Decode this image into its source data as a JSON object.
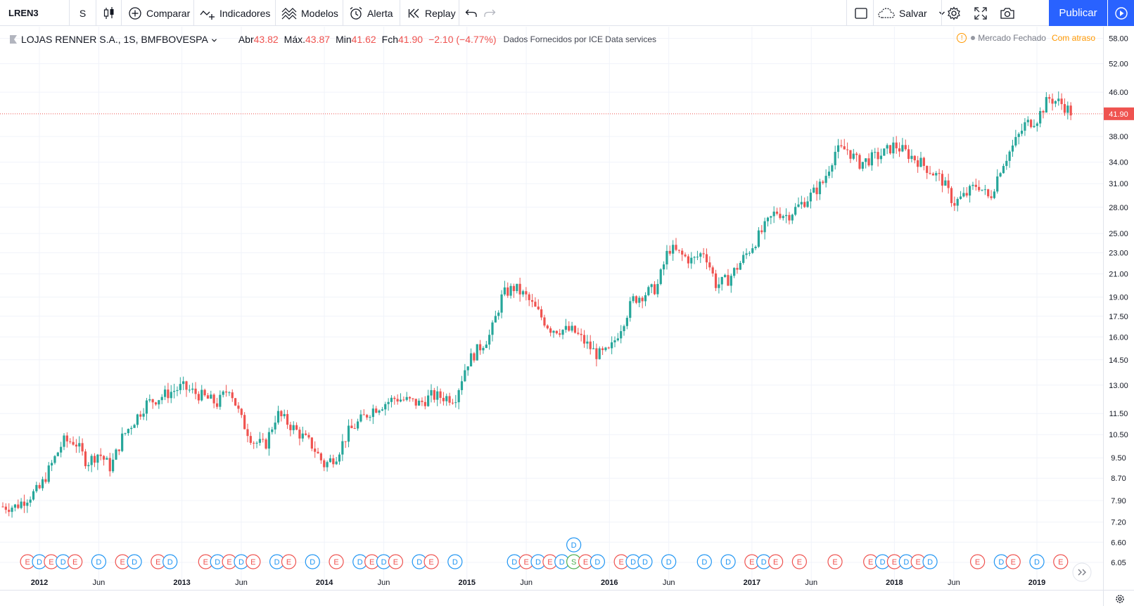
{
  "toolbar": {
    "symbol": "LREN3",
    "interval": "S",
    "compare": "Comparar",
    "indicators": "Indicadores",
    "templates": "Modelos",
    "alert": "Alerta",
    "replay": "Replay",
    "save": "Salvar",
    "publish": "Publicar"
  },
  "legend": {
    "title": "LOJAS RENNER S.A., 1S, BMFBOVESPA",
    "open_label": "Abr",
    "open": "43.82",
    "high_label": "Máx.",
    "high": "43.87",
    "low_label": "Min",
    "low": "41.62",
    "close_label": "Fch",
    "close": "41.90",
    "change": "−2.10 (−4.77%)",
    "source": "Dados Fornecidos por ICE Data services",
    "market_status": "Mercado Fechado",
    "delay": "Com atraso"
  },
  "colors": {
    "up": "#26a69a",
    "down": "#ef5350",
    "accent": "#2962ff",
    "dividend": "#2196f3",
    "earnings": "#ef5350",
    "split": "#4caf50"
  },
  "chart_data": {
    "type": "candlestick",
    "scale": "log",
    "last_price": 41.9,
    "last_price_label": "41.90",
    "price_ticks": [
      "58.00",
      "52.00",
      "46.00",
      "41.90",
      "38.00",
      "34.00",
      "31.00",
      "28.00",
      "25.00",
      "23.00",
      "21.00",
      "19.00",
      "17.50",
      "16.00",
      "14.50",
      "13.00",
      "11.50",
      "10.50",
      "9.50",
      "8.70",
      "7.90",
      "7.20",
      "6.60",
      "6.05"
    ],
    "price_tick_values": [
      58,
      52,
      46,
      38,
      34,
      31,
      28,
      25,
      23,
      21,
      19,
      17.5,
      16,
      14.5,
      13,
      11.5,
      10.5,
      9.5,
      8.7,
      7.9,
      7.2,
      6.6,
      6.05
    ],
    "time_labels": [
      "2012",
      "Jun",
      "2013",
      "Jun",
      "2014",
      "Jun",
      "2015",
      "Jun",
      "2016",
      "Jun",
      "2017",
      "Jun",
      "2018",
      "Jun",
      "2019"
    ],
    "time_label_bold": [
      true,
      false,
      true,
      false,
      true,
      false,
      true,
      false,
      true,
      false,
      true,
      false,
      true,
      false,
      true
    ],
    "time_label_dates": [
      "2012-01",
      "2012-06",
      "2013-01",
      "2013-06",
      "2014-01",
      "2014-06",
      "2015-01",
      "2015-06",
      "2016-01",
      "2016-06",
      "2017-01",
      "2017-06",
      "2018-01",
      "2018-06",
      "2019-01"
    ],
    "price_path": [
      [
        "2011-11",
        7.7
      ],
      [
        "2011-12",
        8.0
      ],
      [
        "2012-01",
        8.3
      ],
      [
        "2012-03",
        10.2
      ],
      [
        "2012-04",
        10.2
      ],
      [
        "2012-05",
        9.3
      ],
      [
        "2012-06",
        9.7
      ],
      [
        "2012-07",
        9.1
      ],
      [
        "2012-08",
        10.4
      ],
      [
        "2012-10",
        12.0
      ],
      [
        "2012-12",
        12.6
      ],
      [
        "2013-01",
        12.9
      ],
      [
        "2013-03",
        12.3
      ],
      [
        "2013-04",
        12.0
      ],
      [
        "2013-05",
        12.9
      ],
      [
        "2013-06",
        11.2
      ],
      [
        "2013-07",
        10.2
      ],
      [
        "2013-08",
        10.0
      ],
      [
        "2013-09",
        11.5
      ],
      [
        "2013-10",
        11.0
      ],
      [
        "2013-12",
        10.0
      ],
      [
        "2014-01",
        9.2
      ],
      [
        "2014-02",
        9.6
      ],
      [
        "2014-03",
        10.6
      ],
      [
        "2014-05",
        11.7
      ],
      [
        "2014-07",
        12.3
      ],
      [
        "2014-09",
        12.0
      ],
      [
        "2014-10",
        12.4
      ],
      [
        "2014-12",
        12.3
      ],
      [
        "2015-01",
        14.3
      ],
      [
        "2015-03",
        16.2
      ],
      [
        "2015-04",
        19.2
      ],
      [
        "2015-05",
        19.8
      ],
      [
        "2015-06",
        19.0
      ],
      [
        "2015-08",
        16.6
      ],
      [
        "2015-10",
        16.4
      ],
      [
        "2015-12",
        14.8
      ],
      [
        "2016-01",
        15.0
      ],
      [
        "2016-03",
        18.8
      ],
      [
        "2016-05",
        19.8
      ],
      [
        "2016-06",
        23.5
      ],
      [
        "2016-07",
        22.8
      ],
      [
        "2016-08",
        22.2
      ],
      [
        "2016-09",
        23.2
      ],
      [
        "2016-10",
        20.0
      ],
      [
        "2016-11",
        20.5
      ],
      [
        "2016-12",
        22.0
      ],
      [
        "2017-02",
        25.5
      ],
      [
        "2017-03",
        27.5
      ],
      [
        "2017-04",
        27.0
      ],
      [
        "2017-06",
        29.5
      ],
      [
        "2017-07",
        31.2
      ],
      [
        "2017-08",
        35.6
      ],
      [
        "2017-09",
        36.0
      ],
      [
        "2017-10",
        33.8
      ],
      [
        "2017-12",
        35.2
      ],
      [
        "2018-01",
        36.6
      ],
      [
        "2018-02",
        35.4
      ],
      [
        "2018-03",
        34.2
      ],
      [
        "2018-05",
        31.5
      ],
      [
        "2018-06",
        28.5
      ],
      [
        "2018-07",
        29.5
      ],
      [
        "2018-08",
        31.0
      ],
      [
        "2018-09",
        29.0
      ],
      [
        "2018-10",
        33.5
      ],
      [
        "2018-11",
        36.5
      ],
      [
        "2018-12",
        40.0
      ],
      [
        "2019-01",
        41.0
      ],
      [
        "2019-02",
        44.8
      ],
      [
        "2019-03",
        43.9
      ],
      [
        "2019-04",
        41.9
      ]
    ],
    "events_top": [
      {
        "date": "2015-10",
        "type": "D"
      }
    ],
    "events_bottom": [
      {
        "date": "2011-12",
        "type": "E"
      },
      {
        "date": "2012-01",
        "type": "D"
      },
      {
        "date": "2012-02",
        "type": "E"
      },
      {
        "date": "2012-03",
        "type": "D"
      },
      {
        "date": "2012-04",
        "type": "E"
      },
      {
        "date": "2012-06",
        "type": "D"
      },
      {
        "date": "2012-08",
        "type": "E"
      },
      {
        "date": "2012-09",
        "type": "D"
      },
      {
        "date": "2012-11",
        "type": "E"
      },
      {
        "date": "2012-12",
        "type": "D"
      },
      {
        "date": "2013-03",
        "type": "E"
      },
      {
        "date": "2013-04",
        "type": "D"
      },
      {
        "date": "2013-05",
        "type": "E"
      },
      {
        "date": "2013-06",
        "type": "D"
      },
      {
        "date": "2013-07",
        "type": "E"
      },
      {
        "date": "2013-09",
        "type": "D"
      },
      {
        "date": "2013-10",
        "type": "E"
      },
      {
        "date": "2013-12",
        "type": "D"
      },
      {
        "date": "2014-02",
        "type": "E"
      },
      {
        "date": "2014-04",
        "type": "D"
      },
      {
        "date": "2014-05",
        "type": "E"
      },
      {
        "date": "2014-06",
        "type": "D"
      },
      {
        "date": "2014-07",
        "type": "E"
      },
      {
        "date": "2014-09",
        "type": "D"
      },
      {
        "date": "2014-10",
        "type": "E"
      },
      {
        "date": "2014-12",
        "type": "D"
      },
      {
        "date": "2015-05",
        "type": "D"
      },
      {
        "date": "2015-06",
        "type": "E"
      },
      {
        "date": "2015-07",
        "type": "D"
      },
      {
        "date": "2015-08",
        "type": "E"
      },
      {
        "date": "2015-09",
        "type": "D"
      },
      {
        "date": "2015-10",
        "type": "S"
      },
      {
        "date": "2015-11",
        "type": "E"
      },
      {
        "date": "2015-12",
        "type": "D"
      },
      {
        "date": "2016-02",
        "type": "E"
      },
      {
        "date": "2016-03",
        "type": "D"
      },
      {
        "date": "2016-04",
        "type": "D"
      },
      {
        "date": "2016-06",
        "type": "D"
      },
      {
        "date": "2016-09",
        "type": "D"
      },
      {
        "date": "2016-11",
        "type": "D"
      },
      {
        "date": "2017-01",
        "type": "E"
      },
      {
        "date": "2017-02",
        "type": "D"
      },
      {
        "date": "2017-03",
        "type": "E"
      },
      {
        "date": "2017-05",
        "type": "E"
      },
      {
        "date": "2017-08",
        "type": "E"
      },
      {
        "date": "2017-11",
        "type": "E"
      },
      {
        "date": "2017-12",
        "type": "D"
      },
      {
        "date": "2018-01",
        "type": "E"
      },
      {
        "date": "2018-02",
        "type": "D"
      },
      {
        "date": "2018-03",
        "type": "E"
      },
      {
        "date": "2018-04",
        "type": "D"
      },
      {
        "date": "2018-08",
        "type": "E"
      },
      {
        "date": "2018-10",
        "type": "D"
      },
      {
        "date": "2018-11",
        "type": "E"
      },
      {
        "date": "2019-01",
        "type": "D"
      },
      {
        "date": "2019-03",
        "type": "E"
      }
    ]
  }
}
